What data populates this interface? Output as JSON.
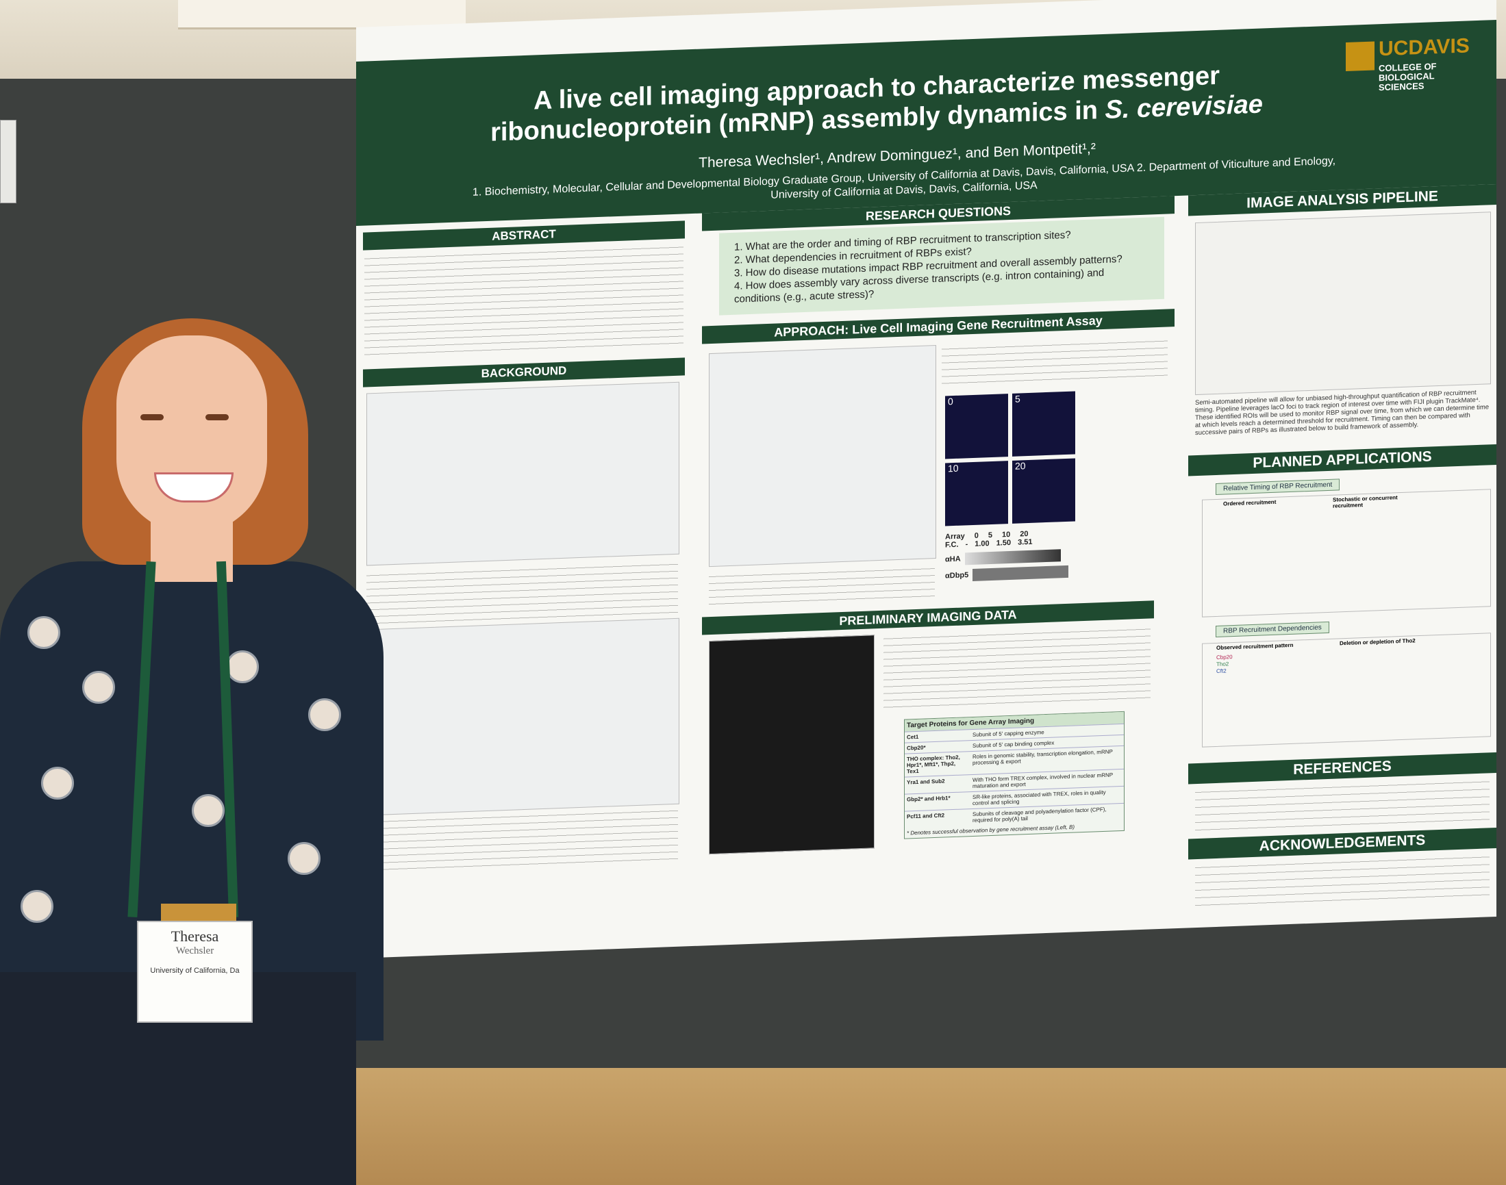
{
  "poster": {
    "title_line1": "A live cell imaging approach to characterize messenger",
    "title_line2": "ribonucleoprotein (mRNP) assembly dynamics in",
    "title_species": "S. cerevisiae",
    "authors": "Theresa Wechsler¹, Andrew Dominguez¹, and Ben Montpetit¹,²",
    "affiliation": "1. Biochemistry, Molecular, Cellular and Developmental Biology Graduate Group, University of California at Davis, Davis, California, USA 2. Department of Viticulture and Enology, University of California at Davis, Davis, California, USA",
    "logo_word": "UCDAVIS",
    "logo_sub": "COLLEGE OF\nBIOLOGICAL\nSCIENCES",
    "sections": {
      "abstract": "ABSTRACT",
      "background": "BACKGROUND",
      "research_questions": "RESEARCH QUESTIONS",
      "approach": "APPROACH: Live Cell Imaging Gene Recruitment Assay",
      "preliminary": "PRELIMINARY IMAGING DATA",
      "pipeline": "IMAGE ANALYSIS PIPELINE",
      "planned": "PLANNED APPLICATIONS",
      "references": "REFERENCES",
      "acknowledgements": "ACKNOWLEDGEMENTS"
    },
    "research_questions": [
      "1. What are the order and timing of RBP recruitment to transcription sites?",
      "2. What dependencies in recruitment of RBPs exist?",
      "3. How do disease mutations impact RBP recruitment and overall assembly patterns?",
      "4. How does assembly vary across diverse transcripts (e.g. intron containing) and conditions (e.g., acute stress)?"
    ],
    "figure4": {
      "title": "Figure 4. pCUP1-GFA1 gene array expression.",
      "panel_labels": [
        "0",
        "5",
        "10",
        "20"
      ],
      "array_row_label": "Array",
      "fc_label": "F.C.",
      "array_values": [
        "0",
        "5",
        "10",
        "20"
      ],
      "fc_values": [
        "-",
        "1.00",
        "1.50",
        "3.51"
      ],
      "blot1": "αHA",
      "blot2": "αDbp5"
    },
    "pipeline_text": "Semi-automated pipeline will allow for unbiased high-throughput quantification of RBP recruitment timing. Pipeline leverages lacO foci to track region of interest over time with FIJI plugin TrackMate⁴. These identified ROIs will be used to monitor RBP signal over time, from which we can determine time at which levels reach a determined threshold for recruitment. Timing can then be compared with successive pairs of RBPs as illustrated below to build framework of assembly.",
    "planned": {
      "box1": "Relative Timing of RBP Recruitment",
      "box2": "RBP Recruitment Dependencies",
      "ordered": "Ordered recruitment",
      "stochastic": "Stochastic or concurrent recruitment",
      "observed": "Observed recruitment pattern",
      "deletion": "Deletion or depletion of Tho2",
      "legend": [
        "Cbp20",
        "Tho2",
        "Cft2"
      ]
    },
    "table_title": "Target Proteins for Gene Array Imaging",
    "table_rows": [
      [
        "Cet1",
        "Subunit of 5' capping enzyme"
      ],
      [
        "Cbp20*",
        "Subunit of 5' cap binding complex"
      ],
      [
        "THO complex: Tho2, Hpr1*, Mft1*, Thp2, Tex1",
        "Roles in genomic stability, transcription elongation, mRNP processing & export"
      ],
      [
        "Yra1 and Sub2",
        "With THO form TREX complex, involved in nuclear mRNP maturation and export"
      ],
      [
        "Gbp2* and Hrb1*",
        "SR-like proteins, associated with TREX, roles in quality control and splicing"
      ],
      [
        "Pcf11 and Cft2",
        "Subunits of cleavage and polyadenylation factor (CPF), required for poly(A) tail"
      ]
    ],
    "table_footnote": "* Denotes successful observation by gene recruitment assay (Left, B)",
    "badge_name": "Theresa",
    "badge_last": "Wechsler",
    "badge_org": "University of California, Da"
  }
}
